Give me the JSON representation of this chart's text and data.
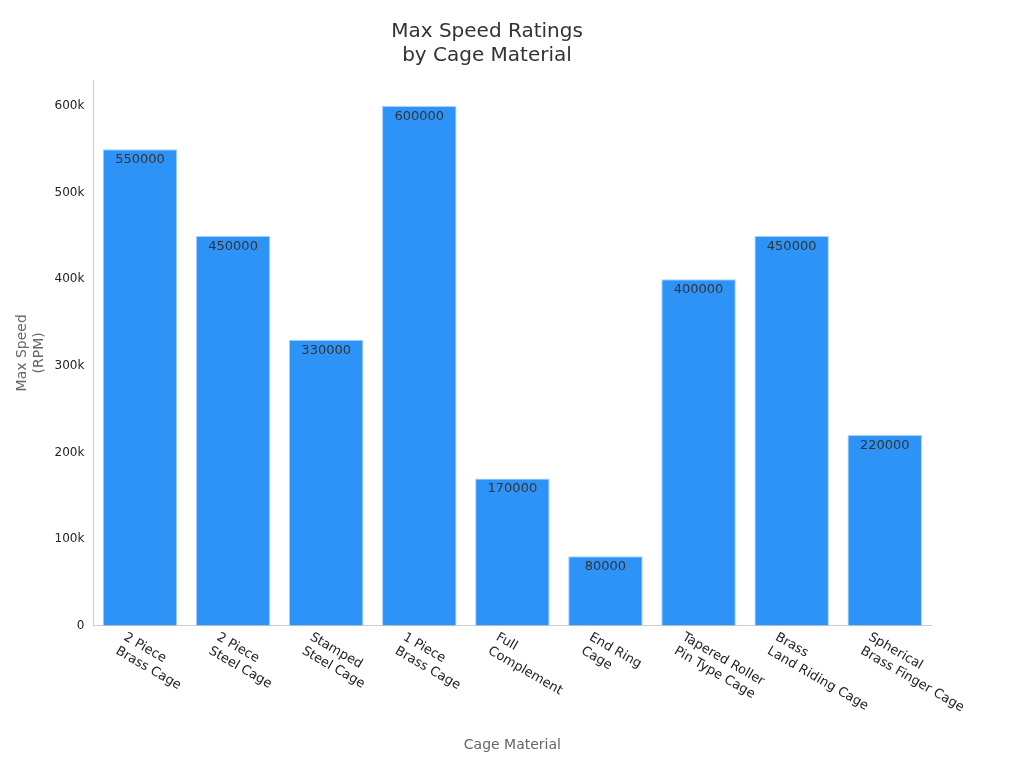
{
  "chart_data": {
    "type": "bar",
    "title": "Max Speed Ratings\nby Cage Material",
    "xlabel": "Cage Material",
    "ylabel": "Max Speed\n(RPM)",
    "categories": [
      "2 Piece\nBrass Cage",
      "2 Piece\nSteel Cage",
      "Stamped\nSteel Cage",
      "1 Piece\nBrass Cage",
      "Full\nComplement",
      "End Ring\nCage",
      "Tapered Roller\nPin Type Cage",
      "Brass\nLand Riding Cage",
      "Spherical\nBrass Finger Cage"
    ],
    "values": [
      550000,
      450000,
      330000,
      600000,
      170000,
      80000,
      400000,
      450000,
      220000
    ],
    "color": "#2e93f7",
    "data_labels": true,
    "grid": false,
    "legend": false,
    "ylim": [
      0,
      630000
    ],
    "yticks": [
      {
        "value": 0,
        "label": "0"
      },
      {
        "value": 100000,
        "label": "100k"
      },
      {
        "value": 200000,
        "label": "200k"
      },
      {
        "value": 300000,
        "label": "300k"
      },
      {
        "value": 400000,
        "label": "400k"
      },
      {
        "value": 500000,
        "label": "500k"
      },
      {
        "value": 600000,
        "label": "600k"
      }
    ]
  }
}
